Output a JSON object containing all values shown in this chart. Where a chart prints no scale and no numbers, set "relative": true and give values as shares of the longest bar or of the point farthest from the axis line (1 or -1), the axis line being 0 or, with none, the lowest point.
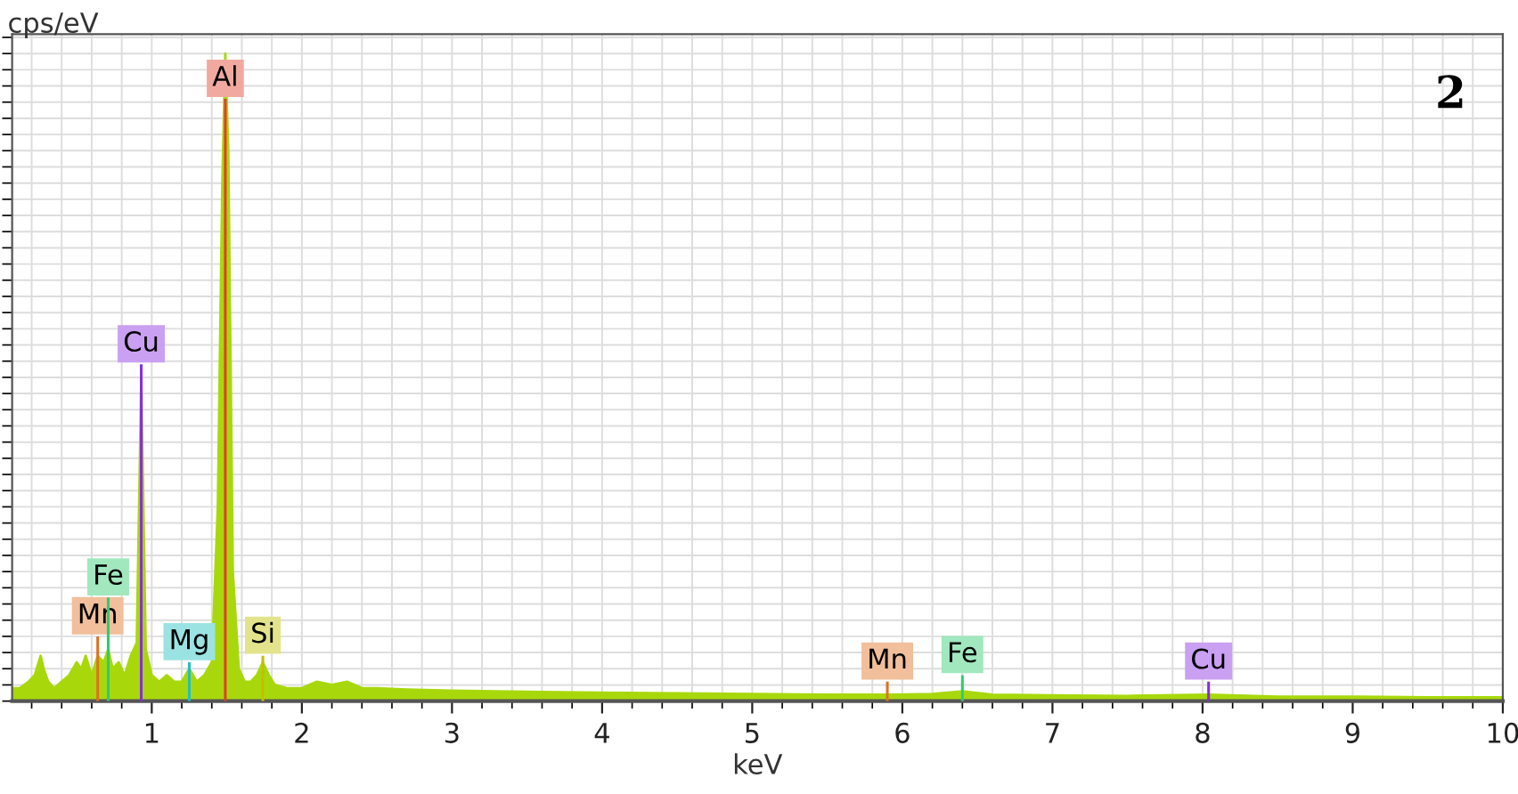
{
  "chart_data": {
    "type": "area",
    "xlabel": "keV",
    "ylabel": "cps/eV",
    "relative": true,
    "xlim": [
      0.07,
      10
    ],
    "xticks": [
      1,
      2,
      3,
      4,
      5,
      6,
      7,
      8,
      9,
      10
    ],
    "grid": true,
    "legend": false,
    "series": [
      {
        "color": "#a8d80c",
        "x": [
          0.07,
          0.12,
          0.18,
          0.22,
          0.26,
          0.28,
          0.31,
          0.35,
          0.4,
          0.45,
          0.5,
          0.53,
          0.56,
          0.6,
          0.64,
          0.68,
          0.71,
          0.74,
          0.78,
          0.82,
          0.86,
          0.9,
          0.93,
          0.96,
          1.0,
          1.05,
          1.1,
          1.15,
          1.2,
          1.25,
          1.3,
          1.35,
          1.4,
          1.44,
          1.47,
          1.49,
          1.51,
          1.54,
          1.58,
          1.62,
          1.66,
          1.7,
          1.74,
          1.78,
          1.82,
          1.9,
          2.0,
          2.1,
          2.2,
          2.3,
          2.4,
          2.5,
          2.7,
          3.0,
          3.3,
          3.6,
          4.0,
          4.5,
          5.0,
          5.5,
          5.9,
          6.2,
          6.4,
          6.6,
          7.0,
          7.5,
          8.04,
          8.5,
          9.0,
          9.5,
          10.0
        ],
        "values": [
          0.02,
          0.02,
          0.03,
          0.04,
          0.07,
          0.05,
          0.03,
          0.02,
          0.03,
          0.04,
          0.06,
          0.05,
          0.07,
          0.04,
          0.07,
          0.06,
          0.08,
          0.05,
          0.06,
          0.04,
          0.07,
          0.09,
          0.5,
          0.08,
          0.04,
          0.03,
          0.04,
          0.03,
          0.03,
          0.05,
          0.03,
          0.04,
          0.06,
          0.3,
          0.8,
          1.0,
          0.85,
          0.2,
          0.05,
          0.03,
          0.03,
          0.04,
          0.06,
          0.04,
          0.025,
          0.02,
          0.02,
          0.03,
          0.025,
          0.03,
          0.02,
          0.02,
          0.018,
          0.016,
          0.015,
          0.014,
          0.013,
          0.012,
          0.011,
          0.01,
          0.01,
          0.011,
          0.015,
          0.01,
          0.009,
          0.008,
          0.01,
          0.007,
          0.007,
          0.006,
          0.006
        ]
      },
      {
        "type": "bar",
        "x": [
          0.64,
          0.71,
          0.93,
          1.25,
          1.49,
          1.74,
          5.9,
          6.4,
          8.04
        ],
        "values": [
          0.1,
          0.16,
          0.52,
          0.06,
          0.93,
          0.07,
          0.03,
          0.04,
          0.03
        ],
        "colors": [
          "#e07020",
          "#2ecc71",
          "#8a2be2",
          "#20c0c0",
          "#e0402a",
          "#c0c000",
          "#e07020",
          "#2ecc71",
          "#8a2be2"
        ]
      }
    ],
    "annotations": [
      {
        "text": "Mn",
        "x": 0.64,
        "y": 0.1
      },
      {
        "text": "Fe",
        "x": 0.71,
        "y": 0.16
      },
      {
        "text": "Cu",
        "x": 0.93,
        "y": 0.52
      },
      {
        "text": "Mg",
        "x": 1.25,
        "y": 0.06
      },
      {
        "text": "Al",
        "x": 1.49,
        "y": 0.93
      },
      {
        "text": "Si",
        "x": 1.74,
        "y": 0.07
      },
      {
        "text": "Mn",
        "x": 5.9,
        "y": 0.03
      },
      {
        "text": "Fe",
        "x": 6.4,
        "y": 0.04
      },
      {
        "text": "Cu",
        "x": 8.04,
        "y": 0.03
      },
      "2"
    ]
  }
}
